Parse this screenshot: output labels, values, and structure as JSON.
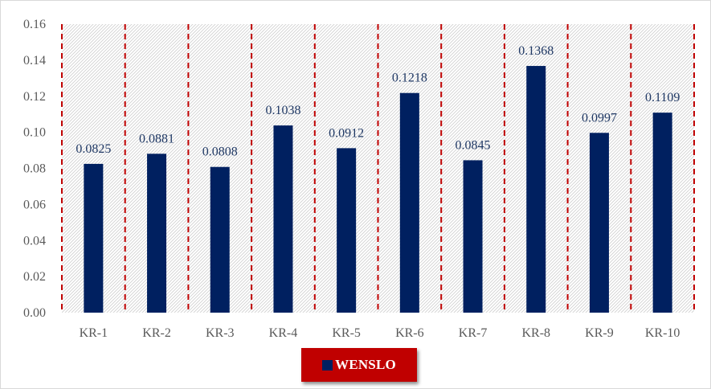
{
  "chart_data": {
    "type": "bar",
    "categories": [
      "KR-1",
      "KR-2",
      "KR-3",
      "KR-4",
      "KR-5",
      "KR-6",
      "KR-7",
      "KR-8",
      "KR-9",
      "KR-10"
    ],
    "series": [
      {
        "name": "WENSLO",
        "values": [
          0.0825,
          0.0881,
          0.0808,
          0.1038,
          0.0912,
          0.1218,
          0.0845,
          0.1368,
          0.0997,
          0.1109
        ],
        "value_labels": [
          "0.0825",
          "0.0881",
          "0.0808",
          "0.1038",
          "0.0912",
          "0.1218",
          "0.0845",
          "0.1368",
          "0.0997",
          "0.1109"
        ]
      }
    ],
    "ylim": [
      0,
      0.16
    ],
    "yticks": [
      "0.00",
      "0.02",
      "0.04",
      "0.06",
      "0.08",
      "0.10",
      "0.12",
      "0.14",
      "0.16"
    ],
    "title": "",
    "xlabel": "",
    "ylabel": "",
    "legend": {
      "placement": "bottom",
      "label": "WENSLO"
    },
    "grid": false,
    "colors": {
      "bar": "#002060",
      "data_label": "#1f3864",
      "separator": "#c00000",
      "legend_background": "#c00000",
      "hatch": "#d0d0d0"
    }
  }
}
